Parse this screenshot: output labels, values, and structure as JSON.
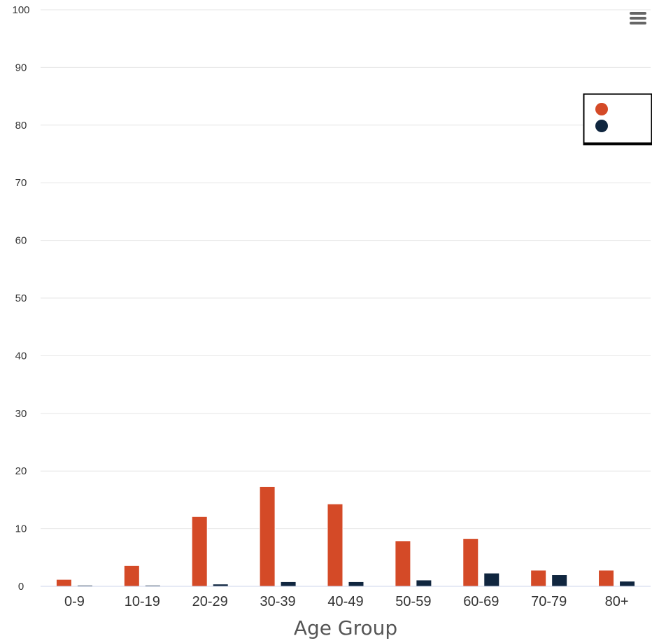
{
  "chart_data": {
    "type": "bar",
    "xlabel": "Age Group",
    "ylabel": "",
    "ylim": [
      0,
      100
    ],
    "yticks": [
      0,
      10,
      20,
      30,
      40,
      50,
      60,
      70,
      80,
      90,
      100
    ],
    "categories": [
      "0-9",
      "10-19",
      "20-29",
      "30-39",
      "40-49",
      "50-59",
      "60-69",
      "70-79",
      "80+"
    ],
    "series": [
      {
        "color": "#d44a27",
        "values": [
          1.2,
          3.6,
          12.1,
          17.3,
          14.3,
          7.9,
          8.3,
          2.8,
          2.8
        ]
      },
      {
        "color": "#10263f",
        "values": [
          0.2,
          0.2,
          0.4,
          0.8,
          0.8,
          1.1,
          2.3,
          2.0,
          0.9
        ]
      }
    ],
    "legend": {
      "placement": "top-right"
    },
    "grid": true
  },
  "ui": {
    "menu_icon": "hamburger-menu-icon"
  }
}
